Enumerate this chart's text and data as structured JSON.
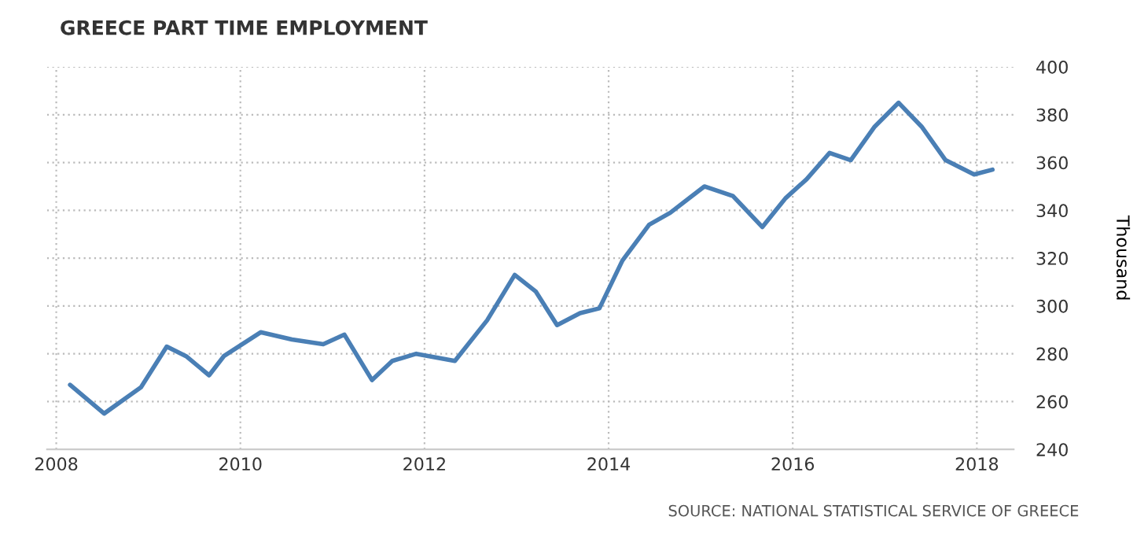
{
  "chart_data": {
    "type": "line",
    "title": "GREECE PART TIME EMPLOYMENT",
    "y2label": "Thousand",
    "annotations": [
      "SOURCE: NATIONAL STATISTICAL SERVICE OF GREECE"
    ],
    "series": [
      {
        "color": "#4a7fb5",
        "axis": "y2",
        "x": [
          2008.15,
          2008.52,
          2008.92,
          2009.2,
          2009.41,
          2009.66,
          2009.82,
          2010.22,
          2010.56,
          2010.9,
          2011.13,
          2011.43,
          2011.65,
          2011.91,
          2012.33,
          2012.68,
          2012.98,
          2013.21,
          2013.44,
          2013.69,
          2013.9,
          2014.15,
          2014.44,
          2014.67,
          2015.04,
          2015.35,
          2015.67,
          2015.92,
          2016.15,
          2016.4,
          2016.63,
          2016.89,
          2017.15,
          2017.4,
          2017.66,
          2017.97,
          2018.17
        ],
        "values": [
          267,
          255,
          266,
          283,
          279,
          271,
          279,
          289,
          286,
          284,
          288,
          269,
          277,
          280,
          277,
          294,
          313,
          306,
          292,
          297,
          299,
          319,
          334,
          339,
          350,
          346,
          333,
          345,
          353,
          364,
          361,
          375,
          385,
          375,
          361,
          355,
          357
        ]
      }
    ],
    "xlim": [
      2007.9,
      2018.4
    ],
    "xticks": [
      2008,
      2010,
      2012,
      2014,
      2016,
      2018
    ],
    "y2lim": [
      240,
      400
    ],
    "y2ticks": [
      240,
      260,
      280,
      300,
      320,
      340,
      360,
      380,
      400
    ],
    "grid": true,
    "line_style": "solid",
    "marker": "none"
  }
}
